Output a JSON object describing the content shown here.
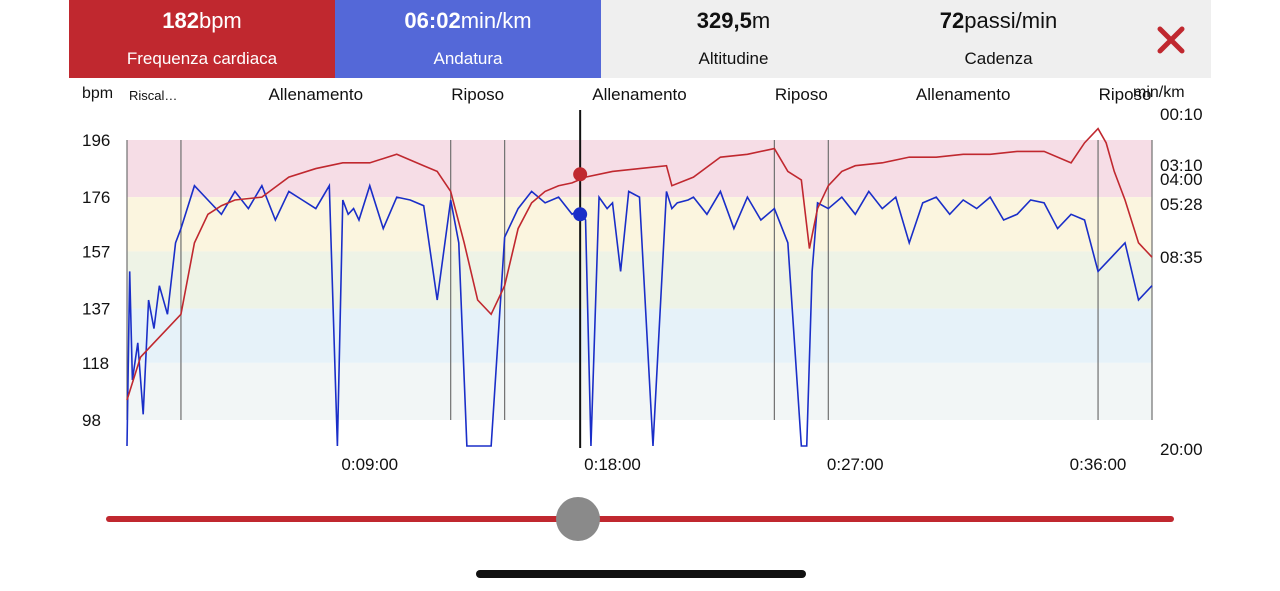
{
  "header": {
    "heart_rate": {
      "value": "182",
      "unit": "bpm",
      "label": "Frequenza cardiaca"
    },
    "pace": {
      "value": "06:02",
      "unit": "min/km",
      "label": "Andatura"
    },
    "altitude": {
      "value": "329,5",
      "unit": "m",
      "label": "Altitudine"
    },
    "cadence": {
      "value": "72",
      "unit": "passi/min",
      "label": "Cadenza"
    },
    "close_icon": "close-x-icon"
  },
  "colors": {
    "heart_rate": "#c0282f",
    "pace": "#1a2ec8",
    "zone_5": "#f6dde6",
    "zone_4": "#fbf5df",
    "zone_3": "#eef3e6",
    "zone_2": "#e6f2f9",
    "zone_1": "#f2f6f6"
  },
  "chart_data": {
    "type": "line",
    "xlabel": "",
    "left_axis": {
      "label": "bpm",
      "ticks": [
        196,
        176,
        157,
        137,
        118,
        98
      ]
    },
    "right_axis": {
      "label": "min/km",
      "ticks": [
        "00:10",
        "03:10",
        "04:00",
        "05:28",
        "08:35",
        "20:00"
      ]
    },
    "x_ticks": [
      "0:09:00",
      "0:18:00",
      "0:27:00",
      "0:36:00"
    ],
    "xlim_minutes": [
      0,
      38
    ],
    "ylim_bpm": [
      88,
      200
    ],
    "zones_bpm": [
      [
        176,
        196
      ],
      [
        157,
        176
      ],
      [
        137,
        157
      ],
      [
        118,
        137
      ],
      [
        98,
        118
      ]
    ],
    "segments": [
      {
        "label": "Riscal…",
        "start": 0,
        "end": 2.0
      },
      {
        "label": "Allenamento",
        "start": 2.0,
        "end": 12.0
      },
      {
        "label": "Riposo",
        "start": 12.0,
        "end": 14.0
      },
      {
        "label": "Allenamento",
        "start": 14.0,
        "end": 24.0
      },
      {
        "label": "Riposo",
        "start": 24.0,
        "end": 26.0
      },
      {
        "label": "Allenamento",
        "start": 26.0,
        "end": 36.0
      },
      {
        "label": "Riposo",
        "start": 36.0,
        "end": 38.0
      }
    ],
    "cursor_minutes": 16.8,
    "series": [
      {
        "name": "Frequenza cardiaca",
        "x": [
          0,
          0.5,
          1,
          1.5,
          2,
          2.5,
          3,
          3.5,
          4,
          5,
          6,
          7,
          8,
          9,
          10,
          11,
          11.5,
          12,
          12.5,
          13,
          13.5,
          14,
          14.5,
          15,
          15.5,
          16,
          16.5,
          17,
          18,
          19,
          20,
          20.2,
          21,
          22,
          23,
          24,
          24.5,
          25,
          25.3,
          25.6,
          26,
          26.5,
          27,
          28,
          29,
          30,
          31,
          32,
          33,
          34,
          35,
          35.5,
          36,
          36.3,
          36.6,
          37,
          37.5,
          38
        ],
        "y": [
          105,
          120,
          125,
          130,
          135,
          160,
          170,
          173,
          175,
          176,
          183,
          186,
          188,
          188,
          191,
          187,
          185,
          178,
          160,
          140,
          135,
          145,
          165,
          174,
          178,
          180,
          181,
          183,
          185,
          186,
          187,
          180,
          183,
          190,
          191,
          193,
          185,
          182,
          158,
          172,
          180,
          185,
          187,
          188,
          190,
          190,
          191,
          191,
          192,
          192,
          188,
          195,
          200,
          195,
          185,
          175,
          160,
          155
        ]
      },
      {
        "name": "Andatura",
        "x": [
          0,
          0.1,
          0.2,
          0.4,
          0.6,
          0.8,
          1,
          1.2,
          1.5,
          1.8,
          2,
          2.5,
          3,
          3.5,
          4,
          4.5,
          5,
          5.5,
          6,
          6.5,
          7,
          7.5,
          7.8,
          8,
          8.2,
          8.4,
          8.6,
          9,
          9.5,
          10,
          10.5,
          11,
          11.5,
          12,
          12.3,
          12.6,
          12.8,
          13,
          13.5,
          14,
          14.5,
          15,
          15.5,
          16,
          16.5,
          16.8,
          17,
          17.2,
          17.5,
          17.8,
          18,
          18.3,
          18.6,
          19,
          19.5,
          20,
          20.2,
          20.4,
          20.8,
          21,
          21.5,
          22,
          22.5,
          23,
          23.5,
          24,
          24.5,
          25,
          25.2,
          25.4,
          25.6,
          26,
          26.5,
          27,
          27.5,
          28,
          28.5,
          29,
          29.5,
          30,
          30.5,
          31,
          31.5,
          32,
          32.5,
          33,
          33.5,
          34,
          34.5,
          35,
          35.5,
          36,
          36.5,
          37,
          37.5,
          38
        ],
        "y": [
          88,
          150,
          112,
          125,
          100,
          140,
          130,
          145,
          135,
          160,
          165,
          180,
          175,
          170,
          178,
          172,
          180,
          168,
          178,
          175,
          172,
          180,
          88,
          175,
          170,
          172,
          168,
          180,
          165,
          176,
          175,
          173,
          140,
          175,
          160,
          88,
          88,
          88,
          88,
          162,
          172,
          178,
          174,
          176,
          170,
          172,
          168,
          88,
          176,
          172,
          174,
          150,
          178,
          176,
          88,
          178,
          172,
          174,
          175,
          176,
          170,
          178,
          165,
          176,
          168,
          172,
          160,
          88,
          88,
          150,
          174,
          172,
          176,
          170,
          178,
          172,
          176,
          160,
          174,
          176,
          170,
          175,
          172,
          176,
          168,
          170,
          175,
          174,
          165,
          170,
          168,
          150,
          155,
          160,
          140,
          145
        ]
      }
    ],
    "markers": {
      "heart_rate_y": 184,
      "pace_y": 170
    }
  }
}
